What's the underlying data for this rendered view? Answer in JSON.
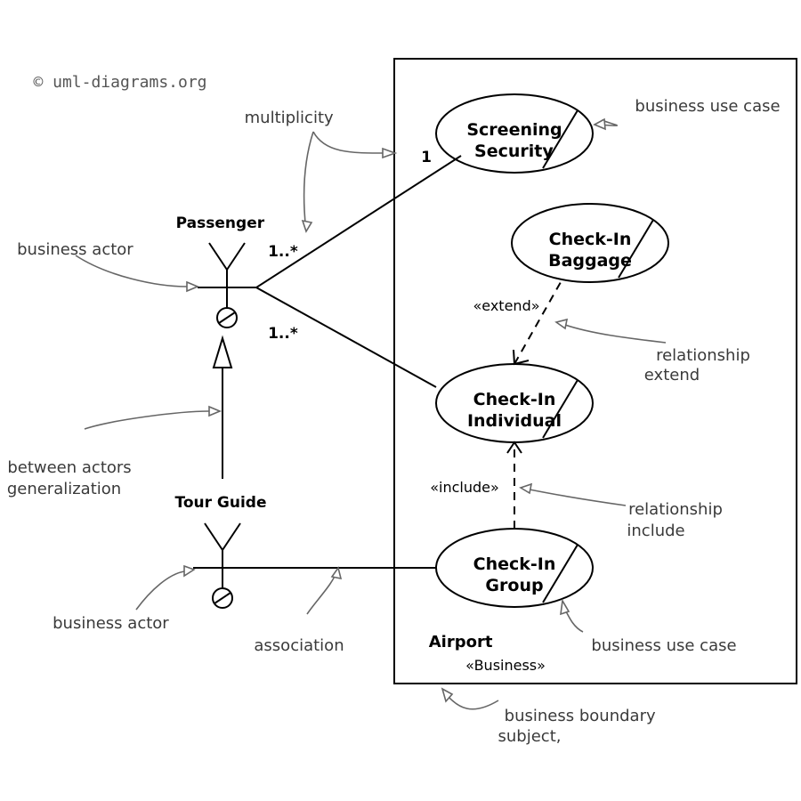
{
  "copyright": "© uml-diagrams.org",
  "subject": {
    "stereotype": "«Business»",
    "name": "Airport"
  },
  "actors": {
    "passenger": "Passenger",
    "tour_guide": "Tour Guide"
  },
  "use_cases": {
    "security": [
      "Security",
      "Screening"
    ],
    "baggage": [
      "Baggage",
      "Check-In"
    ],
    "individual": [
      "Individual",
      "Check-In"
    ],
    "group": [
      "Group",
      "Check-In"
    ]
  },
  "multiplicities": {
    "security_end": "1",
    "passenger_upper": "1..*",
    "passenger_lower": "1..*"
  },
  "relationships": {
    "extend": "«extend»",
    "include": "«include»"
  },
  "annotations": {
    "multiplicity": "multiplicity",
    "business_use_case_top": "business use case",
    "business_actor_top": "business actor",
    "relationship_extend": [
      "relationship",
      "extend"
    ],
    "generalization": [
      "generalization",
      "between actors"
    ],
    "relationship_include": [
      "relationship",
      "include"
    ],
    "business_actor_bottom": "business actor",
    "association": "association",
    "business_use_case_bottom": "business use case",
    "business_boundary": [
      "subject,",
      "business boundary"
    ]
  }
}
